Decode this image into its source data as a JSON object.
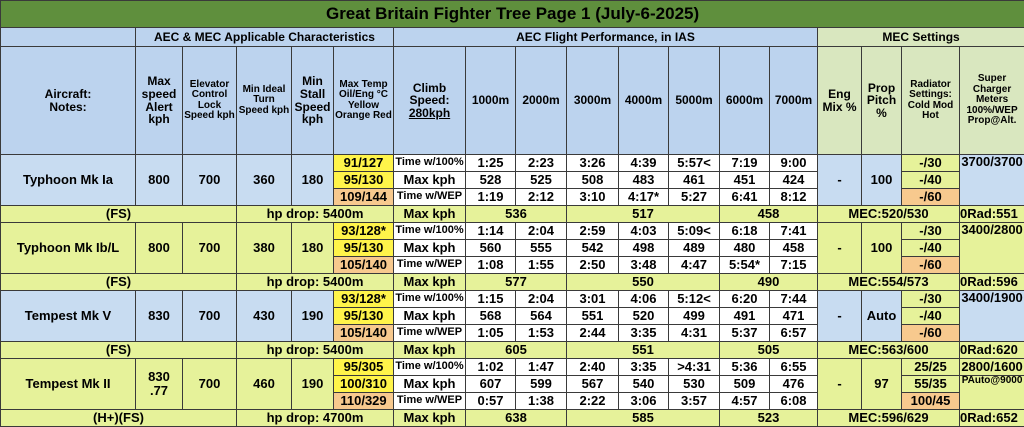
{
  "title": "Great Britain Fighter Tree Page 1 (July-6-2025)",
  "groups": {
    "characteristics": "AEC & MEC Applicable Characteristics",
    "flight": "AEC Flight Performance, in IAS",
    "settings": "MEC Settings"
  },
  "headers": {
    "aircraft": "Aircraft:\nNotes:",
    "max_speed": "Max speed Alert kph",
    "elevator": "Elevator Control Lock Speed kph",
    "turn": "Min Ideal Turn Speed kph",
    "stall": "Min Stall Speed kph",
    "temp": "Max Temp Oil/Eng °C Yellow Orange Red",
    "climb": "Climb Speed:",
    "climb_speed": "280kph",
    "alts": [
      "1000m",
      "2000m",
      "3000m",
      "4000m",
      "5000m",
      "6000m",
      "7000m"
    ],
    "eng_mix": "Eng Mix %",
    "prop_pitch": "Prop Pitch %",
    "radiator": "Radiator Settings: Cold Mod Hot",
    "supercharger": "Super Charger Meters 100%/WEP Prop@Alt."
  },
  "aircraft": [
    {
      "name": "Typhoon Mk Ia",
      "max_speed": "800",
      "elevator": "700",
      "turn": "360",
      "stall": "180",
      "temps": [
        "91/127",
        "95/130",
        "109/144"
      ],
      "rows": [
        {
          "label": "Time w/100%",
          "vals": [
            "1:25",
            "2:23",
            "3:26",
            "4:39",
            "5:57<",
            "7:19",
            "9:00"
          ]
        },
        {
          "label": "Max kph",
          "vals": [
            "528",
            "525",
            "508",
            "483",
            "461",
            "451",
            "424"
          ]
        },
        {
          "label": "Time w/WEP",
          "vals": [
            "1:19",
            "2:12",
            "3:10",
            "4:17*",
            "5:27",
            "6:41",
            "8:12"
          ]
        }
      ],
      "mix": "-",
      "pitch": "100",
      "rad": [
        "-/30",
        "-/40",
        "-/60"
      ],
      "sc": "3700/3700",
      "note": "(FS)",
      "hp_drop": "hp drop: 5400m",
      "wep_label": "Max kph",
      "wep": [
        "536",
        "517",
        "458"
      ],
      "mec": "MEC:520/530",
      "orad": "0Rad:551"
    },
    {
      "name": "Typhoon Mk Ib/L",
      "max_speed": "800",
      "elevator": "700",
      "turn": "380",
      "stall": "180",
      "temps": [
        "93/128*",
        "95/130",
        "105/140"
      ],
      "rows": [
        {
          "label": "Time w/100%",
          "vals": [
            "1:14",
            "2:04",
            "2:59",
            "4:03",
            "5:09<",
            "6:18",
            "7:41"
          ]
        },
        {
          "label": "Max kph",
          "vals": [
            "560",
            "555",
            "542",
            "498",
            "489",
            "480",
            "458"
          ]
        },
        {
          "label": "Time w/WEP",
          "vals": [
            "1:08",
            "1:55",
            "2:50",
            "3:48",
            "4:47",
            "5:54*",
            "7:15"
          ]
        }
      ],
      "mix": "-",
      "pitch": "100",
      "rad": [
        "-/30",
        "-/40",
        "-/60"
      ],
      "sc": "3400/2800",
      "note": "(FS)",
      "hp_drop": "hp drop: 5400m",
      "wep_label": "Max kph",
      "wep": [
        "577",
        "550",
        "490"
      ],
      "mec": "MEC:554/573",
      "orad": "0Rad:596"
    },
    {
      "name": "Tempest Mk V",
      "max_speed": "830",
      "elevator": "700",
      "turn": "430",
      "stall": "190",
      "temps": [
        "93/128*",
        "95/130",
        "105/140"
      ],
      "rows": [
        {
          "label": "Time w/100%",
          "vals": [
            "1:15",
            "2:04",
            "3:01",
            "4:06",
            "5:12<",
            "6:20",
            "7:44"
          ]
        },
        {
          "label": "Max kph",
          "vals": [
            "568",
            "564",
            "551",
            "520",
            "499",
            "491",
            "471"
          ]
        },
        {
          "label": "Time w/WEP",
          "vals": [
            "1:05",
            "1:53",
            "2:44",
            "3:35",
            "4:31",
            "5:37",
            "6:57"
          ]
        }
      ],
      "mix": "-",
      "pitch": "Auto",
      "rad": [
        "-/30",
        "-/40",
        "-/60"
      ],
      "sc": "3400/1900",
      "note": "(FS)",
      "hp_drop": "hp drop: 5400m",
      "wep_label": "Max kph",
      "wep": [
        "605",
        "551",
        "505"
      ],
      "mec": "MEC:563/600",
      "orad": "0Rad:620"
    },
    {
      "name": "Tempest Mk II",
      "max_speed": "830",
      "max_speed2": ".77",
      "elevator": "700",
      "turn": "460",
      "stall": "190",
      "temps": [
        "95/305",
        "100/310",
        "110/329"
      ],
      "rows": [
        {
          "label": "Time w/100%",
          "vals": [
            "1:02",
            "1:47",
            "2:40",
            "3:35",
            ">4:31",
            "5:36",
            "6:55"
          ]
        },
        {
          "label": "Max kph",
          "vals": [
            "607",
            "599",
            "567",
            "540",
            "530",
            "509",
            "476"
          ]
        },
        {
          "label": "Time w/WEP",
          "vals": [
            "0:57",
            "1:38",
            "2:22",
            "3:06",
            "3:57",
            "4:57",
            "6:08"
          ]
        }
      ],
      "mix": "-",
      "pitch": "97",
      "rad": [
        "25/25",
        "55/35",
        "100/45"
      ],
      "sc": "2800/1600",
      "sc2": "PAuto@9000",
      "note": "(H+)(FS)",
      "hp_drop": "hp drop: 4700m",
      "wep_label": "Max kph",
      "wep": [
        "638",
        "585",
        "523"
      ],
      "mec": "MEC:596/629",
      "orad": "0Rad:652"
    }
  ]
}
